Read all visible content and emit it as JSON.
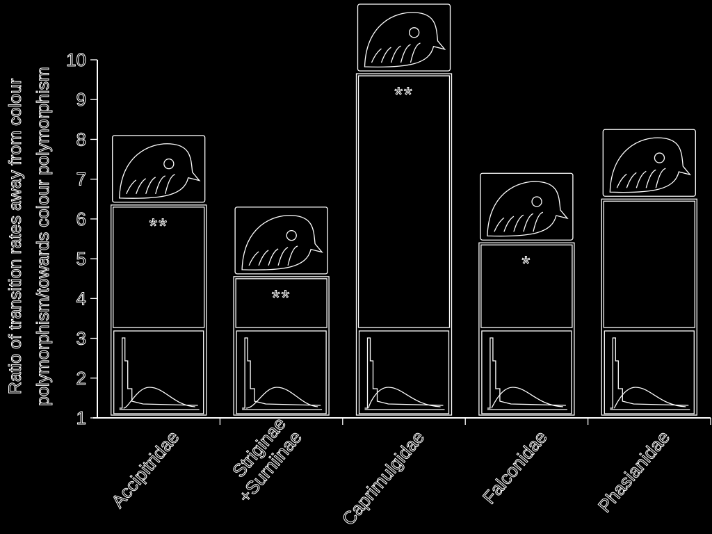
{
  "chart_data": {
    "type": "bar",
    "title": "",
    "ylabel_lines": [
      "Ratio of transition rates away from colour",
      "polymorphism/towards colour polymorphism"
    ],
    "xlabel": "",
    "ylim": [
      1,
      10
    ],
    "yticks": [
      1,
      2,
      3,
      4,
      5,
      6,
      7,
      8,
      9,
      10
    ],
    "categories": [
      {
        "lines": [
          "Accipitridae"
        ]
      },
      {
        "lines": [
          "Striginae",
          "+Surniinae"
        ]
      },
      {
        "lines": [
          "Caprimulgidae"
        ]
      },
      {
        "lines": [
          "Falconidae"
        ]
      },
      {
        "lines": [
          "Phasianidae"
        ]
      }
    ],
    "values": [
      6.35,
      4.55,
      9.65,
      5.4,
      6.5
    ],
    "significance": [
      "**",
      "**",
      "**",
      "*",
      ""
    ],
    "bird_illustrations": [
      "hawk-head",
      "owl-head",
      "nightjar-head",
      "falcon-head",
      "pheasant-head"
    ],
    "legend": "none",
    "grid": false
  }
}
